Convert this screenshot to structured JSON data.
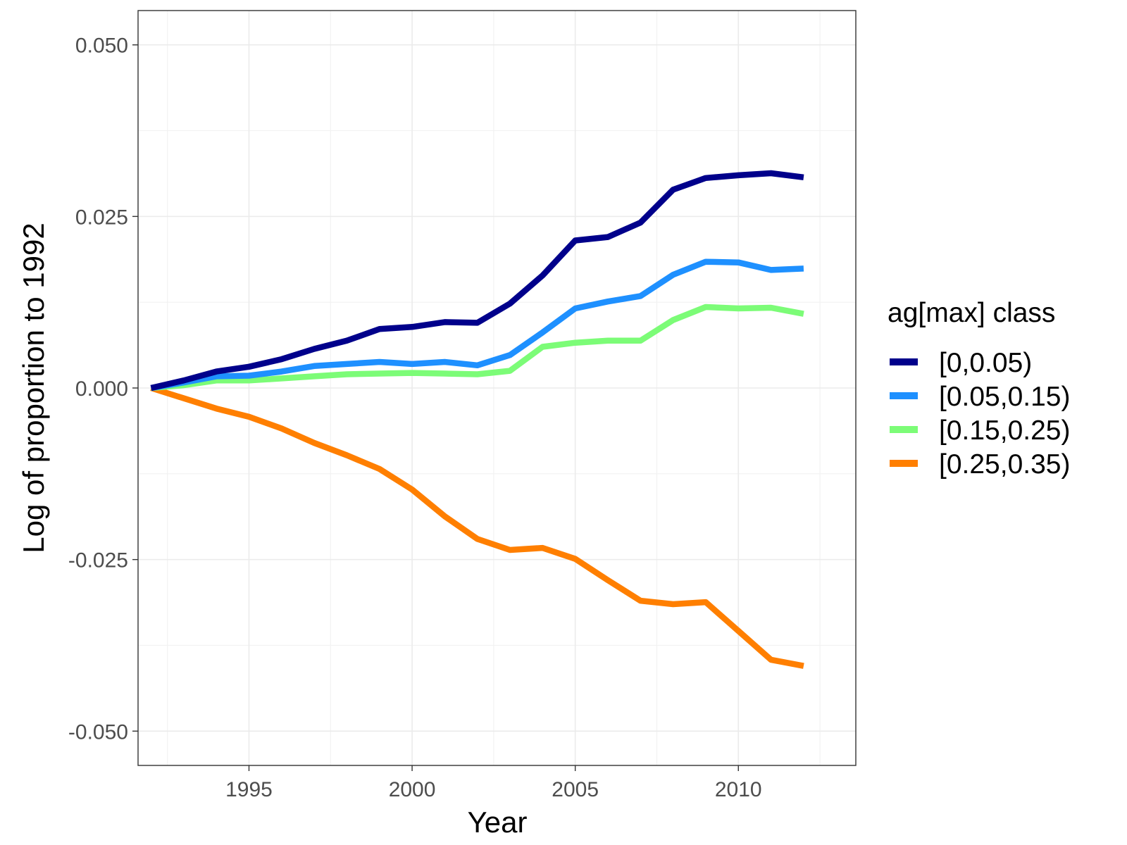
{
  "chart_data": {
    "type": "line",
    "xlabel": "Year",
    "ylabel": "Log of proportion to 1992",
    "xlim": [
      1991.6,
      2013.6
    ],
    "ylim": [
      -0.055,
      0.055
    ],
    "x_ticks": [
      1995,
      2000,
      2005,
      2010
    ],
    "y_ticks": [
      -0.05,
      -0.025,
      0.0,
      0.025,
      0.05
    ],
    "y_tick_labels": [
      "-0.050",
      "-0.025",
      "0.000",
      "0.025",
      "0.050"
    ],
    "grid": true,
    "legend_position": "right",
    "legend_title": "ag[max] class",
    "x": [
      1992,
      1993,
      1994,
      1995,
      1996,
      1997,
      1998,
      1999,
      2000,
      2001,
      2002,
      2003,
      2004,
      2005,
      2006,
      2007,
      2008,
      2009,
      2010,
      2011,
      2012
    ],
    "series": [
      {
        "name": "[0,0.05)",
        "color": "#00008b",
        "values": [
          0.0,
          0.0011,
          0.0024,
          0.0031,
          0.0042,
          0.0057,
          0.0069,
          0.0086,
          0.0089,
          0.0096,
          0.0095,
          0.0123,
          0.0164,
          0.0215,
          0.022,
          0.0241,
          0.0289,
          0.0306,
          0.031,
          0.0313,
          0.0307
        ]
      },
      {
        "name": "[0.05,0.15)",
        "color": "#1e90ff",
        "values": [
          0.0,
          0.0008,
          0.0017,
          0.0018,
          0.0024,
          0.0032,
          0.0035,
          0.0038,
          0.0035,
          0.0038,
          0.0033,
          0.0048,
          0.0081,
          0.0116,
          0.0126,
          0.0134,
          0.0165,
          0.0184,
          0.0183,
          0.0172,
          0.0174
        ]
      },
      {
        "name": "[0.15,0.25)",
        "color": "#7cfc77",
        "values": [
          0.0,
          0.0004,
          0.0011,
          0.0011,
          0.0014,
          0.0017,
          0.002,
          0.0021,
          0.0022,
          0.0021,
          0.002,
          0.0025,
          0.006,
          0.0066,
          0.0069,
          0.0069,
          0.0099,
          0.0118,
          0.0116,
          0.0117,
          0.0108
        ]
      },
      {
        "name": "[0.25,0.35)",
        "color": "#ff7f00",
        "values": [
          0.0,
          -0.0015,
          -0.003,
          -0.0042,
          -0.0059,
          -0.008,
          -0.0098,
          -0.0118,
          -0.0148,
          -0.0187,
          -0.022,
          -0.0236,
          -0.0233,
          -0.0249,
          -0.028,
          -0.031,
          -0.0315,
          -0.0312,
          -0.0354,
          -0.0396,
          -0.0405
        ]
      }
    ]
  }
}
